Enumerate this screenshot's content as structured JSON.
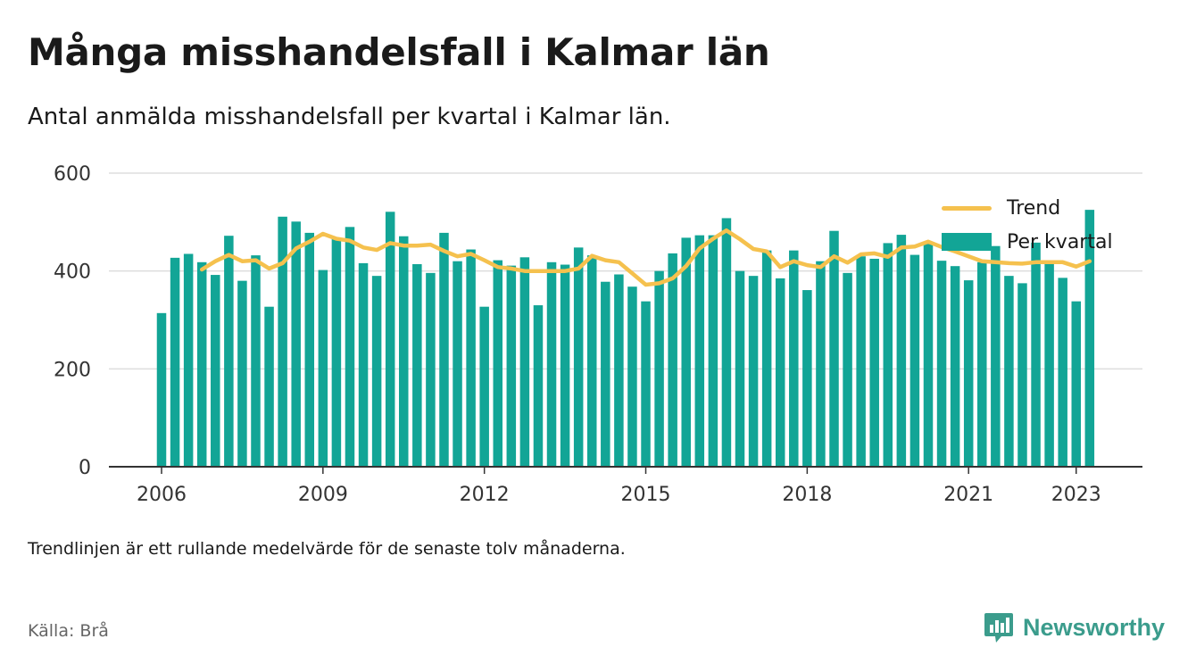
{
  "title": "Många misshandelsfall i Kalmar län",
  "subtitle": "Antal anmälda misshandelsfall per kvartal i Kalmar län.",
  "note": "Trendlinjen är ett rullande medelvärde för de senaste tolv månaderna.",
  "source": "Källa: Brå",
  "brand": {
    "name": "Newsworthy",
    "icon": "newsworthy-chart-icon",
    "color": "#3b9c8c"
  },
  "colors": {
    "bar": "#12a596",
    "trend": "#f5c14e",
    "grid": "#dddddd",
    "axis": "#333333"
  },
  "chart_data": {
    "type": "bar",
    "start_quarter": "2006 Q1",
    "ylim": [
      0,
      600
    ],
    "yticks": [
      0,
      200,
      400,
      600
    ],
    "xticks": [
      "2006",
      "2009",
      "2012",
      "2015",
      "2018",
      "2021",
      "2023"
    ],
    "grid": true,
    "legend_position": "top-right",
    "series": [
      {
        "name": "Per kvartal",
        "kind": "bar",
        "values": [
          314,
          427,
          435,
          418,
          392,
          472,
          380,
          432,
          327,
          511,
          501,
          478,
          402,
          465,
          490,
          416,
          390,
          521,
          471,
          414,
          396,
          478,
          420,
          444,
          327,
          422,
          411,
          428,
          330,
          418,
          413,
          448,
          432,
          378,
          393,
          368,
          338,
          400,
          436,
          468,
          473,
          473,
          508,
          400,
          390,
          442,
          385,
          442,
          361,
          420,
          482,
          396,
          430,
          425,
          457,
          474,
          433,
          455,
          421,
          410,
          381,
          418,
          451,
          390,
          375,
          458,
          418,
          386,
          338,
          525
        ]
      },
      {
        "name": "Trend",
        "kind": "line",
        "values": [
          null,
          null,
          null,
          403,
          420,
          433,
          420,
          422,
          405,
          416,
          446,
          460,
          476,
          466,
          462,
          448,
          443,
          457,
          452,
          452,
          454,
          441,
          430,
          435,
          422,
          408,
          405,
          400,
          400,
          400,
          400,
          405,
          431,
          422,
          418,
          395,
          372,
          375,
          385,
          410,
          446,
          466,
          483,
          465,
          445,
          440,
          408,
          420,
          412,
          408,
          430,
          417,
          434,
          436,
          429,
          448,
          450,
          460,
          449,
          440,
          430,
          420,
          418,
          416,
          415,
          418,
          418,
          418,
          409,
          420
        ]
      }
    ]
  }
}
